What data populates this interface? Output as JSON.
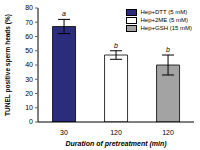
{
  "chart_data": {
    "type": "bar",
    "x_label": "Duration of pretreatment (min)",
    "y_label": "TUNEL positive sperm heads (%)",
    "categories": [
      "30",
      "120",
      "120"
    ],
    "series": [
      {
        "name": "Hep+DTT (5 mM)",
        "color": "#2b2d7c",
        "values": [
          67,
          null,
          null
        ],
        "errors": [
          5,
          null,
          null
        ]
      },
      {
        "name": "Hep+2ME (5 mM)",
        "color": "#ffffff",
        "values": [
          null,
          47,
          null
        ],
        "errors": [
          null,
          3,
          null
        ]
      },
      {
        "name": "Hep+GSH (15 mM)",
        "color": "#a3a3a3",
        "values": [
          null,
          null,
          40
        ],
        "errors": [
          null,
          null,
          7
        ]
      }
    ],
    "annotations": [
      "a",
      "b",
      "b"
    ],
    "ylim": [
      0,
      80
    ],
    "yticks": [
      0,
      10,
      20,
      30,
      40,
      50,
      60,
      70,
      80
    ],
    "legend": "upper right",
    "grid": false
  }
}
